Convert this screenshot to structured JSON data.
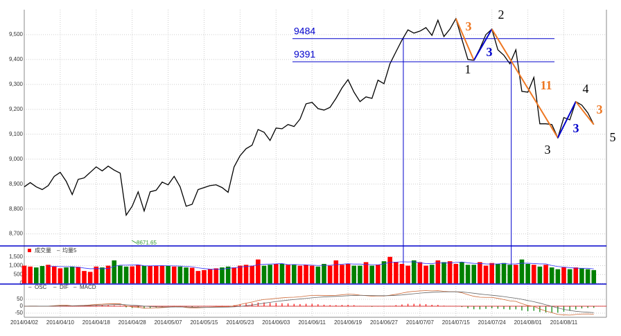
{
  "chart_data": [
    {
      "type": "line",
      "color": "#000000",
      "values": [
        8889,
        8906,
        8889,
        8878,
        8894,
        8931,
        8947,
        8911,
        8858,
        8919,
        8925,
        8947,
        8969,
        8953,
        8972,
        8956,
        8944,
        8775,
        8811,
        8869,
        8792,
        8869,
        8875,
        8908,
        8897,
        8931,
        8889,
        8811,
        8819,
        8878,
        8886,
        8894,
        8897,
        8886,
        8867,
        8969,
        9014,
        9042,
        9056,
        9119,
        9108,
        9075,
        9125,
        9122,
        9139,
        9131,
        9161,
        9222,
        9228,
        9203,
        9197,
        9208,
        9244,
        9286,
        9319,
        9269,
        9231,
        9250,
        9244,
        9317,
        9303,
        9383,
        9431,
        9478,
        9519,
        9506,
        9514,
        9528,
        9497,
        9558,
        9492,
        9522,
        9564,
        9481,
        9400,
        9397,
        9444,
        9500,
        9522,
        9439,
        9417,
        9383,
        9439,
        9272,
        9269,
        9328,
        9142,
        9142,
        9139,
        9086,
        9167,
        9158,
        9231,
        9217,
        9186,
        9139
      ],
      "ylim": [
        8660,
        9600
      ],
      "yticks": [
        {
          "value": 8700,
          "label": "8,700"
        },
        {
          "value": 8800,
          "label": "8,800"
        },
        {
          "value": 8900,
          "label": "8,900"
        },
        {
          "value": 9000,
          "label": "9,000"
        },
        {
          "value": 9100,
          "label": "9,100"
        },
        {
          "value": 9200,
          "label": "9,200"
        },
        {
          "value": 9300,
          "label": "9,300"
        },
        {
          "value": 9400,
          "label": "9,400"
        },
        {
          "value": 9500,
          "label": "9,500"
        }
      ],
      "grid": true,
      "levels": [
        9484,
        9391
      ],
      "min_label": 8671.65,
      "wave_labels": [
        "3",
        "1",
        "3",
        "2",
        "11",
        "3",
        "3",
        "4",
        "3",
        "5"
      ]
    },
    {
      "type": "bar",
      "up_color": "#ff0000",
      "down_color": "#008000",
      "series": [
        {
          "name": "成交量",
          "color": "#ff0000",
          "values": [
            1000,
            950,
            900,
            980,
            1050,
            950,
            850,
            900,
            950,
            930,
            700,
            650,
            950,
            900,
            1000,
            1300,
            1000,
            950,
            960,
            1050,
            1000,
            980,
            1000,
            1000,
            1000,
            950,
            950,
            900,
            880,
            700,
            750,
            800,
            850,
            900,
            950,
            900,
            1000,
            1050,
            1000,
            1350,
            1000,
            1050,
            1100,
            1100,
            1050,
            1050,
            1000,
            1050,
            1000,
            950,
            1100,
            1000,
            1300,
            1050,
            1100,
            1000,
            1000,
            1200,
            1000,
            1050,
            1250,
            1500,
            1200,
            1100,
            1000,
            1300,
            1200,
            1000,
            1050,
            1300,
            1200,
            1250,
            1100,
            1200,
            1050,
            1050,
            1200,
            1000,
            1150,
            1100,
            1150,
            1050,
            1050,
            1350,
            1100,
            1050,
            950,
            1050,
            900,
            800,
            900,
            800,
            900,
            850,
            800,
            750
          ]
        },
        {
          "name": "均量5",
          "color": "#3333ff"
        }
      ],
      "ylim": [
        0,
        2000
      ],
      "yticks": [
        0,
        500,
        {
          "value": 1000,
          "label": "1,000"
        },
        {
          "value": 1500,
          "label": "1,500"
        }
      ]
    },
    {
      "type": "macd",
      "series": [
        {
          "name": "OSC",
          "color": "#ff0000"
        },
        {
          "name": "DIF",
          "color": "#cc6633"
        },
        {
          "name": "MACD",
          "color": "#666666"
        }
      ],
      "ylim": [
        -80,
        150
      ],
      "yticks": [
        -50,
        0,
        50
      ],
      "categories": [
        "2014/04/02",
        null,
        null,
        null,
        null,
        null,
        "2014/04/10",
        null,
        null,
        null,
        null,
        null,
        "2014/04/18",
        null,
        null,
        null,
        null,
        null,
        "2014/04/28",
        null,
        null,
        null,
        null,
        null,
        "2014/05/07",
        null,
        null,
        null,
        null,
        null,
        "2014/05/15",
        null,
        null,
        null,
        null,
        null,
        "2014/05/23",
        null,
        null,
        null,
        null,
        null,
        "2014/06/03",
        null,
        null,
        null,
        null,
        null,
        "2014/06/11",
        null,
        null,
        null,
        null,
        null,
        "2014/06/19",
        null,
        null,
        null,
        null,
        null,
        "2014/06/27",
        null,
        null,
        null,
        null,
        null,
        "2014/07/07",
        null,
        null,
        null,
        null,
        null,
        "2014/07/15",
        null,
        null,
        null,
        null,
        null,
        "2014/07/24",
        null,
        null,
        null,
        null,
        null,
        "2014/08/01",
        null,
        null,
        null,
        null,
        null,
        "2014/08/11",
        null,
        null,
        null,
        null,
        null
      ]
    }
  ]
}
